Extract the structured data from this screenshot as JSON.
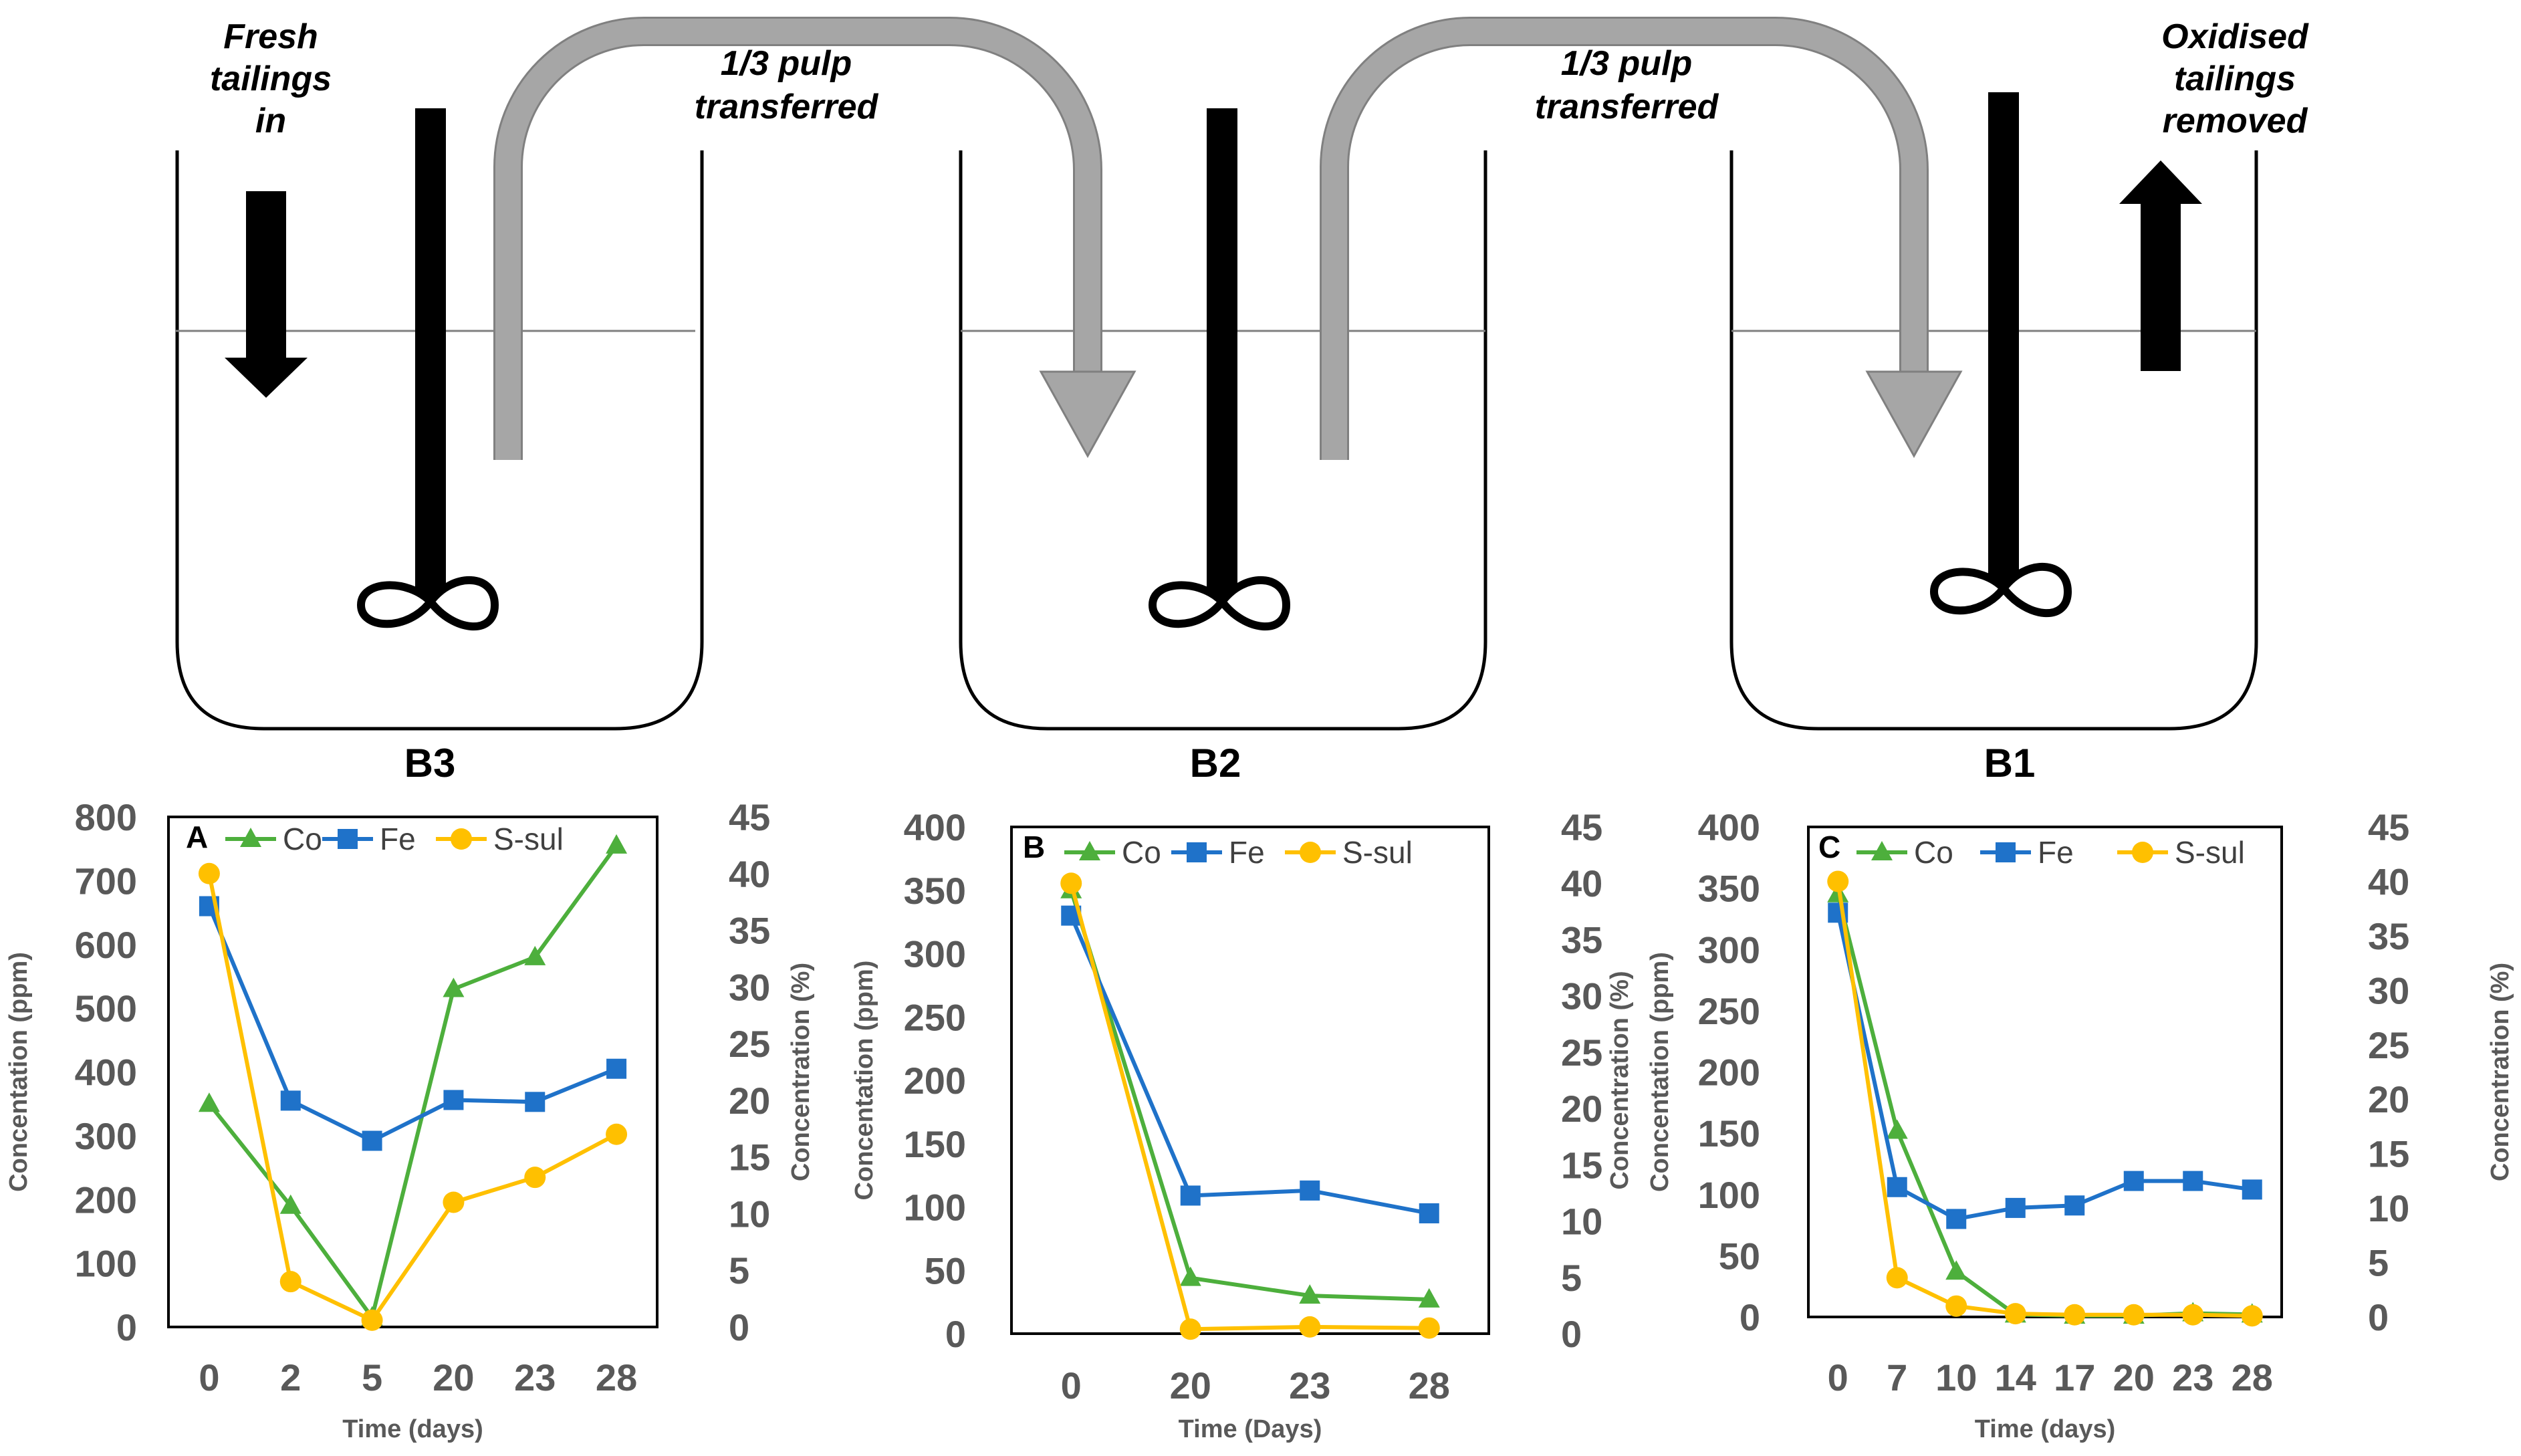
{
  "diagram": {
    "fresh_tailings_label": [
      "Fresh",
      "tailings",
      "in"
    ],
    "transfer_label_1": [
      "1/3 pulp",
      "transferred"
    ],
    "transfer_label_2": [
      "1/3 pulp",
      "transferred"
    ],
    "oxidised_tailings_label": [
      "Oxidised",
      "tailings",
      "removed"
    ],
    "tanks": [
      "B3",
      "B2",
      "B1"
    ]
  },
  "colors": {
    "Co": "#4daf3c",
    "Fe": "#1f72c9",
    "S-sul": "#ffc000",
    "arrow_grey": "#a6a6a6"
  },
  "chart_data": [
    {
      "panel": "A",
      "type": "line",
      "categories": [
        "0",
        "2",
        "5",
        "20",
        "23",
        "28"
      ],
      "xlabel": "Time (days)",
      "ylabel": "Concentation (ppm)",
      "y2label": "Concentration (%)",
      "ylim": [
        0,
        800
      ],
      "y_ticks": [
        0,
        100,
        200,
        300,
        400,
        500,
        600,
        700,
        800
      ],
      "y2lim": [
        0,
        45
      ],
      "y2_ticks": [
        0,
        5,
        10,
        15,
        20,
        25,
        30,
        35,
        40,
        45
      ],
      "series": [
        {
          "name": "Co",
          "axis": "left",
          "marker": "triangle",
          "values": [
            350,
            190,
            15,
            530,
            580,
            755
          ]
        },
        {
          "name": "Fe",
          "axis": "left",
          "marker": "square",
          "values": [
            660,
            355,
            292,
            356,
            353,
            405
          ]
        },
        {
          "name": "S-sul",
          "axis": "right",
          "marker": "circle",
          "values": [
            40,
            4,
            0.6,
            11,
            13.2,
            17
          ]
        }
      ],
      "legend": "top"
    },
    {
      "panel": "B",
      "type": "line",
      "categories": [
        "0",
        "20",
        "23",
        "28"
      ],
      "xlabel": "Time (Days)",
      "ylabel": "Concentation (ppm)",
      "y2label": "Concentration (%)",
      "ylim": [
        0,
        400
      ],
      "y_ticks": [
        0,
        50,
        100,
        150,
        200,
        250,
        300,
        350,
        400
      ],
      "y2lim": [
        0,
        45
      ],
      "y2_ticks": [
        0,
        5,
        10,
        15,
        20,
        25,
        30,
        35,
        40,
        45
      ],
      "series": [
        {
          "name": "Co",
          "axis": "left",
          "marker": "triangle",
          "values": [
            350,
            44,
            30,
            27
          ]
        },
        {
          "name": "Fe",
          "axis": "left",
          "marker": "square",
          "values": [
            330,
            109,
            113,
            95
          ]
        },
        {
          "name": "S-sul",
          "axis": "right",
          "marker": "circle",
          "values": [
            40,
            0.4,
            0.6,
            0.5
          ]
        }
      ],
      "legend": "top"
    },
    {
      "panel": "C",
      "type": "line",
      "categories": [
        "0",
        "7",
        "10",
        "14",
        "17",
        "20",
        "23",
        "28"
      ],
      "xlabel": "Time (days)",
      "ylabel": "Concentation (ppm)",
      "y2label": "Concentration (%)",
      "ylim": [
        0,
        400
      ],
      "y_ticks": [
        0,
        50,
        100,
        150,
        200,
        250,
        300,
        350,
        400
      ],
      "y2lim": [
        0,
        45
      ],
      "y2_ticks": [
        0,
        5,
        10,
        15,
        20,
        25,
        30,
        35,
        40,
        45
      ],
      "series": [
        {
          "name": "Co",
          "axis": "left",
          "marker": "triangle",
          "values": [
            345,
            152,
            37,
            2,
            1,
            1,
            3,
            2
          ]
        },
        {
          "name": "Fe",
          "axis": "left",
          "marker": "square",
          "values": [
            330,
            106,
            80,
            89,
            91,
            111,
            111,
            104
          ]
        },
        {
          "name": "S-sul",
          "axis": "right",
          "marker": "circle",
          "values": [
            40,
            3.6,
            1,
            0.3,
            0.2,
            0.2,
            0.2,
            0.1
          ]
        }
      ],
      "legend": "top"
    }
  ]
}
